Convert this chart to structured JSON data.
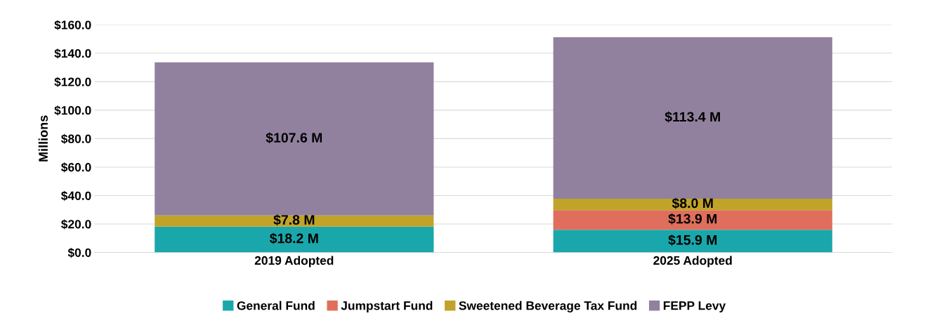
{
  "chart_data": {
    "type": "bar",
    "stacked": true,
    "ylabel": "Millions",
    "categories": [
      "2019 Adopted",
      "2025 Adopted"
    ],
    "series": [
      {
        "name": "General Fund",
        "color": "#1aa7ab",
        "values": [
          18.2,
          15.9
        ],
        "value_labels": [
          "$18.2 M",
          "$15.9 M"
        ]
      },
      {
        "name": "Jumpstart Fund",
        "color": "#df6f5c",
        "values": [
          null,
          13.9
        ],
        "value_labels": [
          null,
          "$13.9 M"
        ]
      },
      {
        "name": "Sweetened Beverage Tax Fund",
        "color": "#c1a32a",
        "values": [
          7.8,
          8.0
        ],
        "value_labels": [
          "$7.8 M",
          "$8.0 M"
        ]
      },
      {
        "name": "FEPP Levy",
        "color": "#91819e",
        "values": [
          107.6,
          113.4
        ],
        "value_labels": [
          "$107.6 M",
          "$113.4 M"
        ]
      }
    ],
    "ylim": [
      0,
      160
    ],
    "yticks": [
      {
        "value": 0,
        "label": "$0.0"
      },
      {
        "value": 20,
        "label": "$20.0"
      },
      {
        "value": 40,
        "label": "$40.0"
      },
      {
        "value": 60,
        "label": "$60.0"
      },
      {
        "value": 80,
        "label": "$80.0"
      },
      {
        "value": 100,
        "label": "$100.0"
      },
      {
        "value": 120,
        "label": "$120.0"
      },
      {
        "value": 140,
        "label": "$140.0"
      },
      {
        "value": 160,
        "label": "$160.0"
      }
    ],
    "grid": "y",
    "legend": "bottom"
  }
}
